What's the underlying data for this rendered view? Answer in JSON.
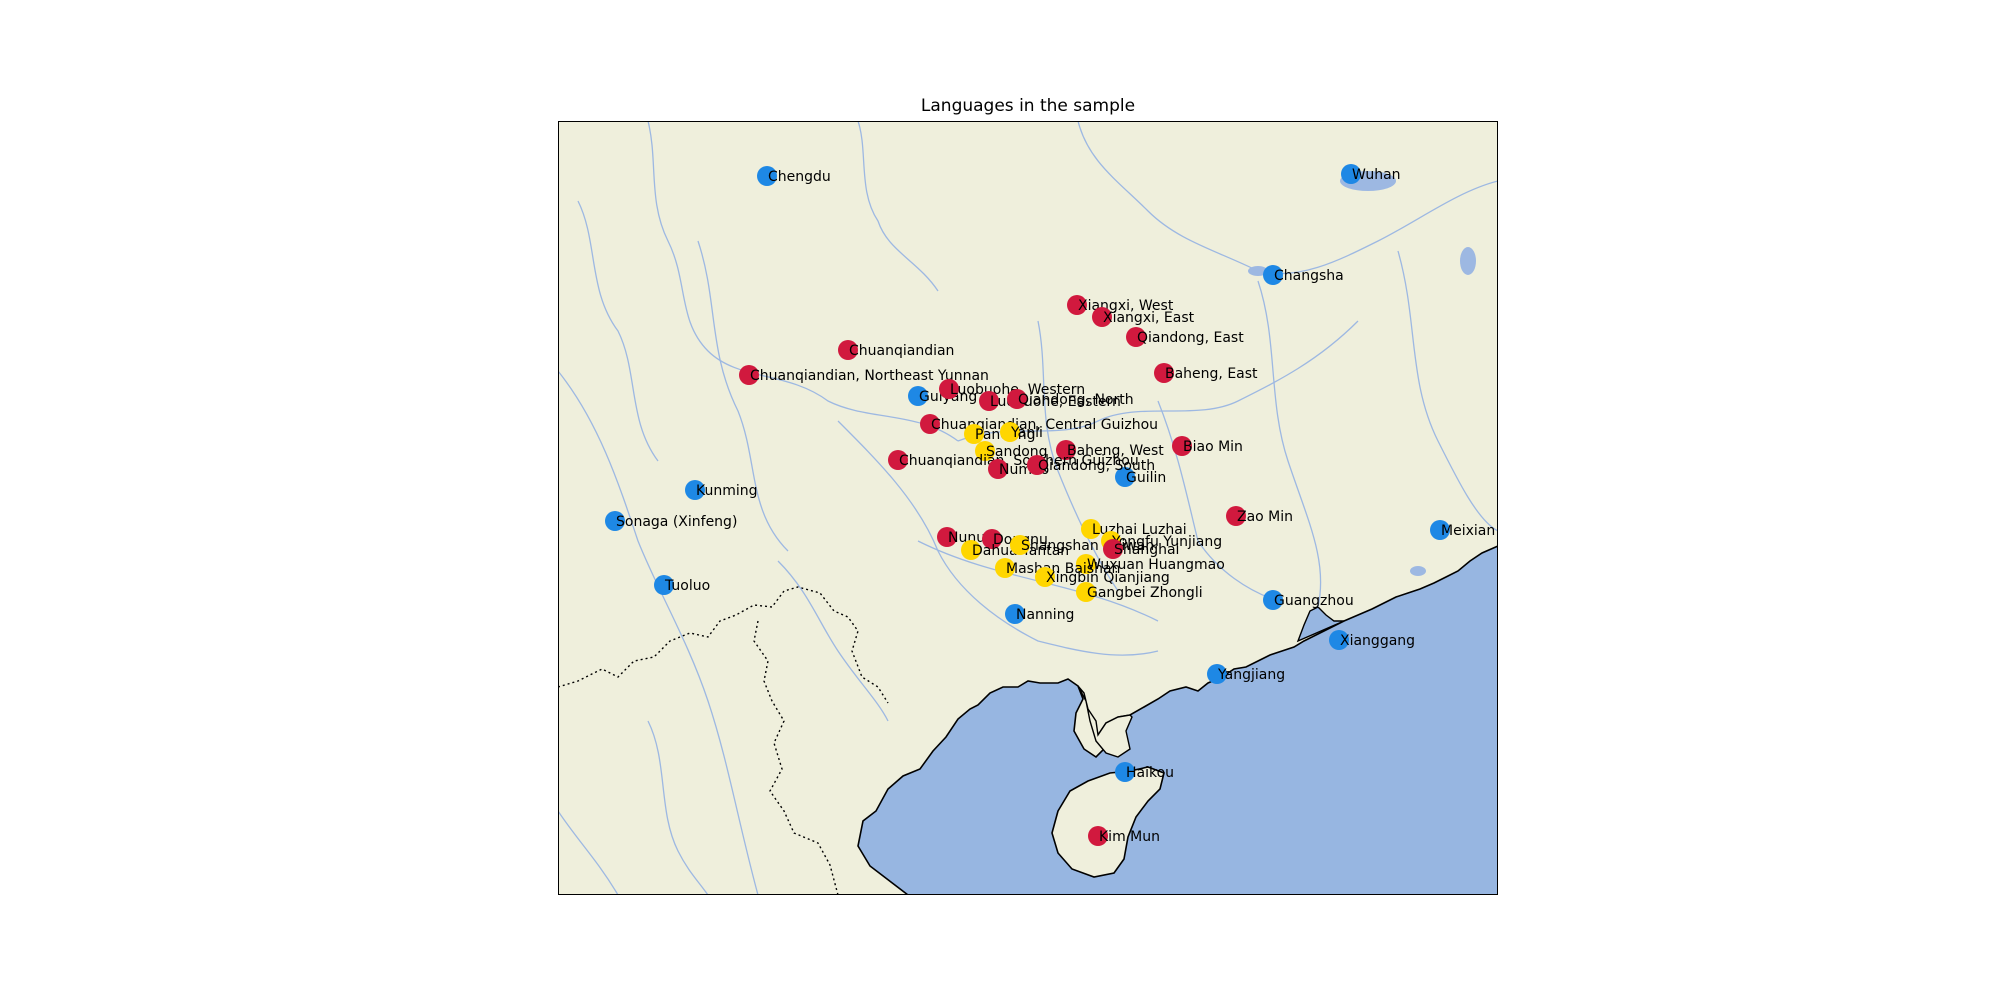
{
  "title": "Languages in the sample",
  "colors": {
    "land": "#efefdc",
    "sea": "#97b6e1",
    "river": "#9db8e2",
    "coast": "#000000",
    "border": "#000000",
    "city": "#1e88e5",
    "language_red": "#d1193e",
    "language_yellow": "#ffd600"
  },
  "markers": [
    {
      "name": "Chengdu",
      "type": "city"
    },
    {
      "name": "Wuhan",
      "type": "city"
    },
    {
      "name": "Changsha",
      "type": "city"
    },
    {
      "name": "Guiyang",
      "type": "city"
    },
    {
      "name": "Kunming",
      "type": "city"
    },
    {
      "name": "Sonaga (Xinfeng)",
      "type": "city"
    },
    {
      "name": "Tuoluo",
      "type": "city"
    },
    {
      "name": "Guilin",
      "type": "city"
    },
    {
      "name": "Nanning",
      "type": "city"
    },
    {
      "name": "Guangzhou",
      "type": "city"
    },
    {
      "name": "Xianggang",
      "type": "city"
    },
    {
      "name": "Yangjiang",
      "type": "city"
    },
    {
      "name": "Meixian",
      "type": "city"
    },
    {
      "name": "Haikou",
      "type": "city"
    },
    {
      "name": "Xiangxi, West",
      "type": "red"
    },
    {
      "name": "Xiangxi, East",
      "type": "red"
    },
    {
      "name": "Qiandong, East",
      "type": "red"
    },
    {
      "name": "Chuanqiandian",
      "type": "red"
    },
    {
      "name": "Chuanqiandian, Northeast Yunnan",
      "type": "red"
    },
    {
      "name": "Baheng, East",
      "type": "red"
    },
    {
      "name": "Luobuohe, Western",
      "type": "red"
    },
    {
      "name": "Luobuohe, Eastern",
      "type": "red"
    },
    {
      "name": "Qiandong, North",
      "type": "red"
    },
    {
      "name": "Chuanqiandian, Central Guizhou",
      "type": "red"
    },
    {
      "name": "Pandong",
      "type": "yellow"
    },
    {
      "name": "Yanli",
      "type": "yellow"
    },
    {
      "name": "Sandong",
      "type": "yellow"
    },
    {
      "name": "Baheng, West",
      "type": "red"
    },
    {
      "name": "Biao Min",
      "type": "red"
    },
    {
      "name": "Chuanqiandian, Southern Guizhou",
      "type": "red"
    },
    {
      "name": "Numao",
      "type": "red"
    },
    {
      "name": "Qiandong, South",
      "type": "red"
    },
    {
      "name": "Zao Min",
      "type": "red"
    },
    {
      "name": "Luzhai Luzhai",
      "type": "yellow"
    },
    {
      "name": "Nunu",
      "type": "red"
    },
    {
      "name": "Dongnu",
      "type": "red"
    },
    {
      "name": "Dahua Yantan",
      "type": "yellow"
    },
    {
      "name": "Shangshan Baiwan",
      "type": "yellow"
    },
    {
      "name": "Yongfu Yunjiang",
      "type": "yellow"
    },
    {
      "name": "Shanghai",
      "type": "red"
    },
    {
      "name": "Wuxuan Huangmao",
      "type": "yellow"
    },
    {
      "name": "Mashan Baishan",
      "type": "yellow"
    },
    {
      "name": "Xingbin Qianjiang",
      "type": "yellow"
    },
    {
      "name": "Gangbei Zhongli",
      "type": "yellow"
    },
    {
      "name": "Kim Mun",
      "type": "red"
    }
  ]
}
